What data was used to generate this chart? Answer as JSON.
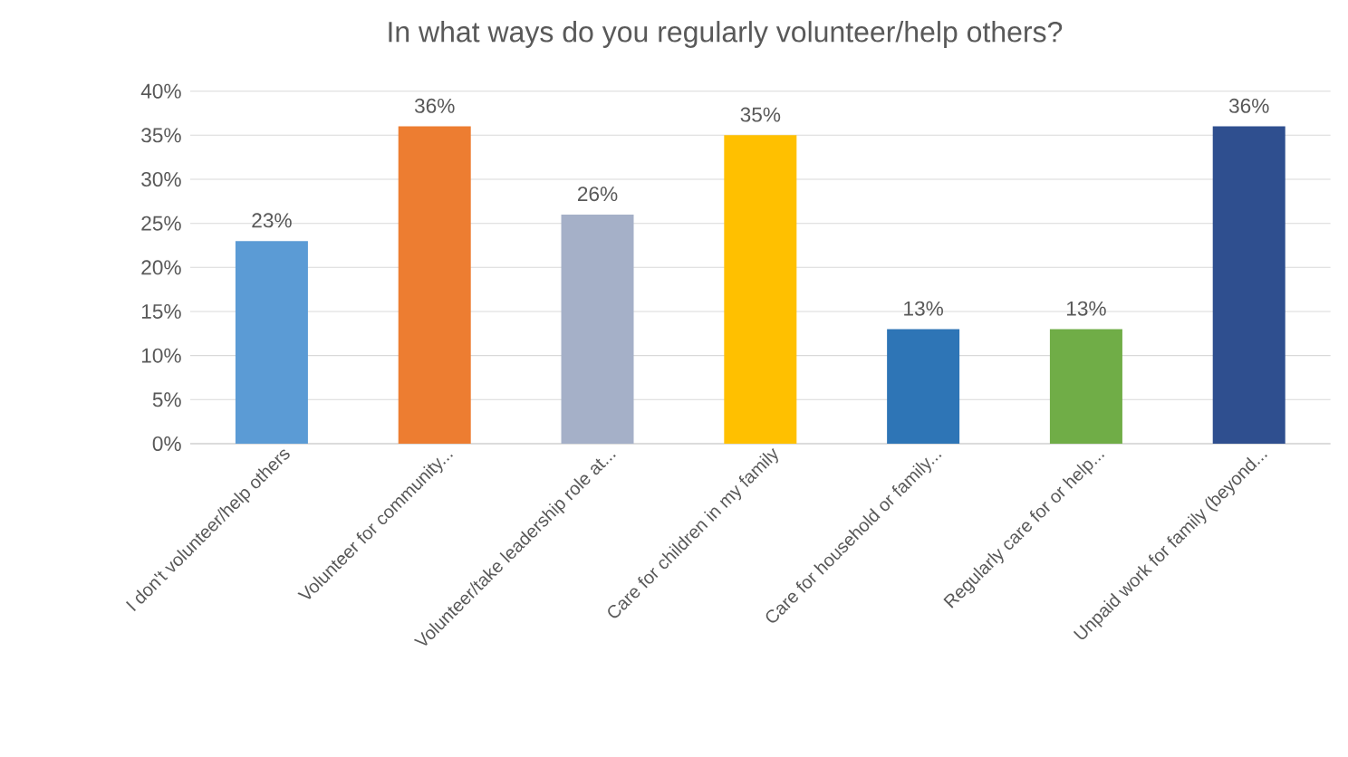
{
  "chart_data": {
    "type": "bar",
    "title": "In what ways do you regularly volunteer/help others?",
    "categories": [
      "I don't volunteer/help others",
      "Volunteer for community...",
      "Volunteer/take leadership role at...",
      "Care for children in my family",
      "Care for household or family...",
      "Regularly care for or help...",
      "Unpaid work for family (beyond..."
    ],
    "values": [
      23,
      36,
      26,
      35,
      13,
      13,
      36
    ],
    "colors": [
      "#5b9bd5",
      "#ed7d31",
      "#a5b0c8",
      "#ffc000",
      "#2e75b6",
      "#70ad47",
      "#2f4f8f"
    ],
    "value_labels": [
      "23%",
      "36%",
      "26%",
      "35%",
      "13%",
      "13%",
      "36%"
    ],
    "ylim": [
      0,
      40
    ],
    "yticks": [
      {
        "value": 0,
        "label": "0%"
      },
      {
        "value": 5,
        "label": "5%"
      },
      {
        "value": 10,
        "label": "10%"
      },
      {
        "value": 15,
        "label": "15%"
      },
      {
        "value": 20,
        "label": "20%"
      },
      {
        "value": 25,
        "label": "25%"
      },
      {
        "value": 30,
        "label": "30%"
      },
      {
        "value": 35,
        "label": "35%"
      },
      {
        "value": 40,
        "label": "40%"
      }
    ],
    "grid": "y"
  }
}
